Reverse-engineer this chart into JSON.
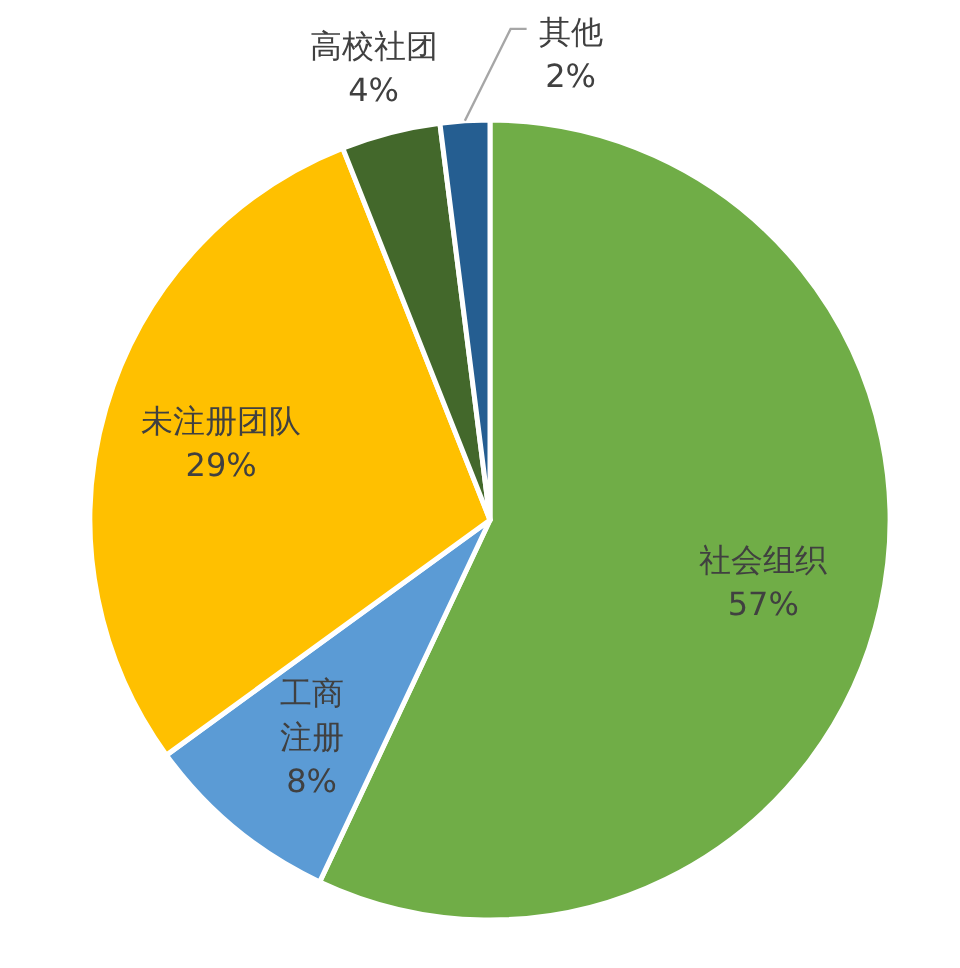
{
  "chart_data": {
    "type": "pie",
    "categories": [
      "社会组织",
      "工商注册",
      "未注册团队",
      "高校社团",
      "其他"
    ],
    "values": [
      57,
      8,
      29,
      4,
      2
    ],
    "colors": [
      "#70ad47",
      "#5b9bd5",
      "#ffc000",
      "#43682b",
      "#255e91"
    ],
    "value_labels": [
      "57%",
      "8%",
      "29%",
      "4%",
      "2%"
    ]
  }
}
